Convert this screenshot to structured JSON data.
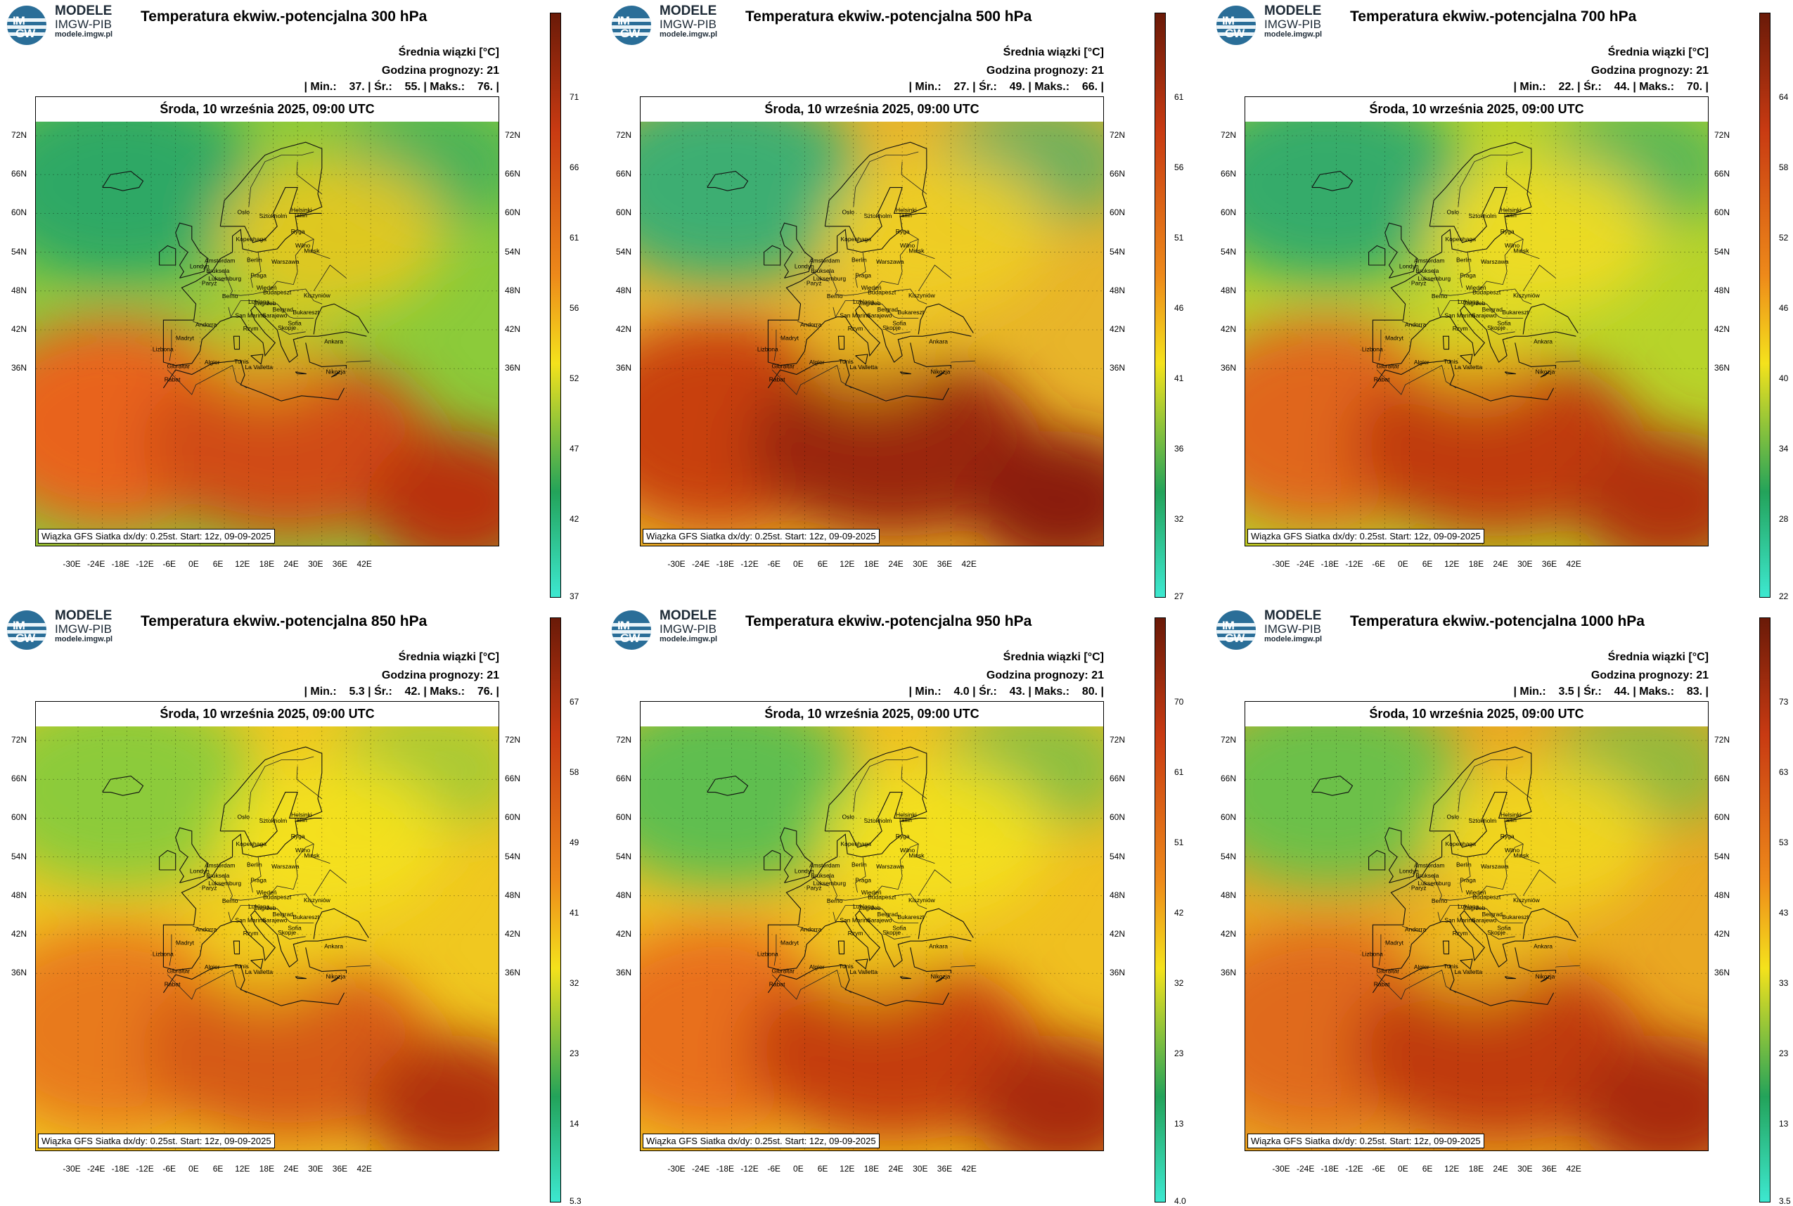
{
  "logo": {
    "circle_top": "IM",
    "circle_bottom": "GW",
    "line1": "MODELE",
    "line2": "IMGW-PIB",
    "line3": "modele.imgw.pl"
  },
  "common": {
    "info_title": "Średnia wiązki [°C]",
    "info_forecast": "Godzina prognozy: 21",
    "date": "Środa, 10 września 2025, 09:00 UTC",
    "footer": "Wiązka GFS Siatka dx/dy: 0.25st. Start: 12z, 09-09-2025",
    "lat_labels": [
      "72N",
      "66N",
      "60N",
      "54N",
      "48N",
      "42N",
      "36N"
    ],
    "lon_labels": [
      "-30E",
      "-24E",
      "-18E",
      "-12E",
      "-6E",
      "0E",
      "6E",
      "12E",
      "18E",
      "24E",
      "30E",
      "36E",
      "42E"
    ],
    "cities": [
      "Helsinki",
      "Oslo",
      "Sztokholm",
      "Tallin",
      "Ryga",
      "Kopenhaga",
      "Wilno",
      "Mińsk",
      "Amsterdam",
      "Londyn",
      "Berlin",
      "Warszawa",
      "Bruksela",
      "Luksemburg",
      "Praga",
      "Paryż",
      "Wiedeń",
      "Kiszyniów",
      "Berno",
      "Lublana",
      "Zagrzeb",
      "Budapeszt",
      "Belgrad",
      "Bukareszt",
      "San Marino",
      "Sarajewo",
      "Sofia",
      "Skopje",
      "Andorra",
      "Rzym",
      "Madryt",
      "Ankara",
      "Lizbona",
      "Algier",
      "Gibraltar",
      "Tunis",
      "La Valletta",
      "Rabat",
      "Nikozja"
    ],
    "colors": {
      "green": "#23a35a",
      "yellow": "#f4e21c",
      "orange": "#ee8a1a",
      "red": "#c83a12",
      "darkred": "#6a1a08"
    }
  },
  "panels": [
    {
      "title": "Temperatura ekwiw.-potencjalna 300 hPa",
      "stats": "| Min.:    37. | Śr.:    55. | Maks.:    76. |",
      "ticks": [
        "71",
        "66",
        "61",
        "56",
        "52",
        "47",
        "42",
        "37"
      ]
    },
    {
      "title": "Temperatura ekwiw.-potencjalna 500 hPa",
      "stats": "| Min.:    27. | Śr.:    49. | Maks.:    66. |",
      "ticks": [
        "61",
        "56",
        "51",
        "46",
        "41",
        "36",
        "32",
        "27"
      ]
    },
    {
      "title": "Temperatura ekwiw.-potencjalna 700 hPa",
      "stats": "| Min.:    22. | Śr.:    44. | Maks.:    70. |",
      "ticks": [
        "64",
        "58",
        "52",
        "46",
        "40",
        "34",
        "28",
        "22"
      ]
    },
    {
      "title": "Temperatura ekwiw.-potencjalna 850 hPa",
      "stats": "| Min.:    5.3 | Śr.:    42. | Maks.:    76. |",
      "ticks": [
        "67",
        "58",
        "49",
        "41",
        "32",
        "23",
        "14",
        "5.3"
      ]
    },
    {
      "title": "Temperatura ekwiw.-potencjalna 950 hPa",
      "stats": "| Min.:    4.0 | Śr.:    43. | Maks.:    80. |",
      "ticks": [
        "70",
        "61",
        "51",
        "42",
        "32",
        "23",
        "13",
        "4.0"
      ]
    },
    {
      "title": "Temperatura ekwiw.-potencjalna 1000 hPa",
      "stats": "| Min.:    3.5 | Śr.:    44. | Maks.:    83. |",
      "ticks": [
        "73",
        "63",
        "53",
        "43",
        "33",
        "23",
        "13",
        "3.5"
      ]
    }
  ]
}
